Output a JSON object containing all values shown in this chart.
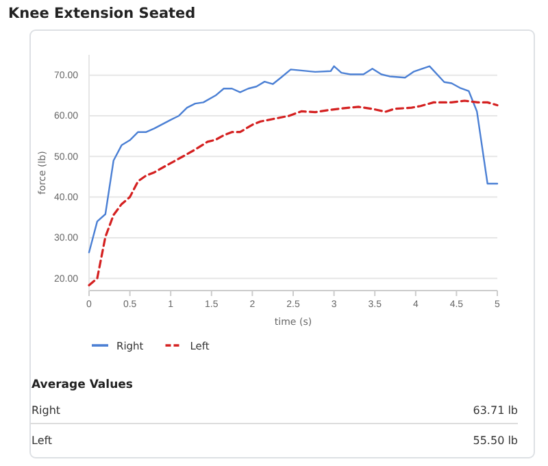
{
  "chart_data": {
    "type": "line",
    "title": "Knee Extension Seated",
    "xlabel": "time (s)",
    "ylabel": "force (lb)",
    "xlim": [
      0,
      5
    ],
    "xticks": [
      0,
      0.5,
      1,
      1.5,
      2,
      2.5,
      3,
      3.5,
      4,
      4.5,
      5
    ],
    "ylim": [
      17,
      75
    ],
    "yticks": [
      {
        "value": 20,
        "label": "20.00"
      },
      {
        "value": 30,
        "label": "30.00"
      },
      {
        "value": 40,
        "label": "40.00"
      },
      {
        "value": 50,
        "label": "50.00"
      },
      {
        "value": 60,
        "label": "60.00"
      },
      {
        "value": 70,
        "label": "70.00"
      }
    ],
    "grid": "y",
    "legend": "bottom",
    "marker": "none",
    "series": [
      {
        "name": "Right",
        "color": "#4a7fd4",
        "line_style": "solid",
        "x": [
          0,
          0.1,
          0.2,
          0.3,
          0.4,
          0.5,
          0.6,
          0.7,
          0.8,
          1.0,
          1.1,
          1.2,
          1.3,
          1.4,
          1.55,
          1.65,
          1.75,
          1.85,
          1.95,
          2.05,
          2.15,
          2.25,
          2.35,
          2.47,
          2.77,
          2.96,
          3.0,
          3.09,
          3.2,
          3.36,
          3.47,
          3.58,
          3.68,
          3.87,
          3.98,
          4.17,
          4.35,
          4.44,
          4.54,
          4.65,
          4.75,
          4.88,
          5.0
        ],
        "values": [
          26.4,
          34,
          35.8,
          49,
          52.8,
          54,
          56,
          56,
          56.9,
          59,
          60,
          62,
          63,
          63.3,
          65,
          66.7,
          66.7,
          65.8,
          66.7,
          67.2,
          68.4,
          67.8,
          69.4,
          71.4,
          70.8,
          71,
          72.2,
          70.6,
          70.2,
          70.2,
          71.6,
          70.2,
          69.7,
          69.4,
          70.9,
          72.2,
          68.3,
          68,
          66.9,
          66.1,
          61.1,
          43.3,
          43.3
        ]
      },
      {
        "name": "Left",
        "color": "#d42020",
        "line_style": "dashed",
        "x": [
          0,
          0.1,
          0.2,
          0.3,
          0.4,
          0.5,
          0.6,
          0.7,
          0.8,
          0.95,
          1.05,
          1.15,
          1.3,
          1.45,
          1.55,
          1.65,
          1.75,
          1.85,
          2.0,
          2.1,
          2.25,
          2.45,
          2.6,
          2.77,
          2.93,
          3.09,
          3.3,
          3.47,
          3.63,
          3.74,
          3.95,
          4.06,
          4.22,
          4.44,
          4.6,
          4.76,
          4.88,
          5.0
        ],
        "values": [
          18.3,
          20,
          30.2,
          35.6,
          38.3,
          40,
          43.9,
          45.3,
          46.1,
          47.8,
          48.9,
          50,
          51.7,
          53.6,
          54.1,
          55.2,
          56,
          56,
          57.8,
          58.6,
          59.2,
          60,
          61.1,
          60.9,
          61.4,
          61.8,
          62.2,
          61.7,
          61,
          61.7,
          62,
          62.4,
          63.3,
          63.3,
          63.7,
          63.3,
          63.3,
          62.6
        ]
      }
    ],
    "annotations": [
      "Average Values",
      "Right",
      "63.71 lb",
      "Left",
      "55.50 lb"
    ]
  }
}
